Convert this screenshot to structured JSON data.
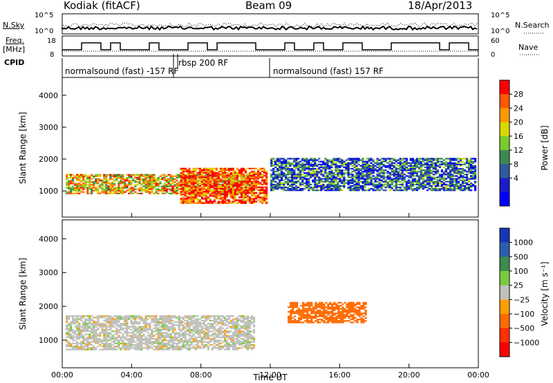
{
  "header": {
    "station": "Kodiak (fitACF)",
    "beam": "Beam 09",
    "date": "18/Apr/2013"
  },
  "summary_panel": {
    "left_top_label": "N.Sky",
    "left_mid_label": "Freq.",
    "left_mid_unit": "[MHz]",
    "left_bottom_label": "CPID",
    "right_top_label": "N.Search",
    "right_bottom_label": "Nave",
    "nsky_ticks": [
      "10^5",
      "10^0"
    ],
    "nsearch_ticks": [
      "10^5",
      "10^0"
    ],
    "freq_ticks": [
      "18",
      "8"
    ],
    "nave_ticks": [
      "60",
      "0"
    ]
  },
  "cpid_segments": [
    {
      "label": "normalsound (fast) -157 RF",
      "start_hour": 0.0
    },
    {
      "label": "rbsp 200 RF",
      "start_hour": 6.4
    },
    {
      "label": "normalsound (fast) 157 RF",
      "start_hour": 12.0
    }
  ],
  "power_colorbar": {
    "label": "Power [dB]",
    "ticks": [
      "28",
      "24",
      "20",
      "16",
      "12",
      "8",
      "4"
    ],
    "colors": [
      "#ff0000",
      "#ff5a00",
      "#ff9a00",
      "#d8d800",
      "#79cc2c",
      "#3b8a52",
      "#2f5b9c",
      "#1c1cc8",
      "#0000ff"
    ]
  },
  "velocity_colorbar": {
    "label": "Velocity [m s⁻¹]",
    "ticks": [
      "1000",
      "500",
      "100",
      "25",
      "−25",
      "−100",
      "−500",
      "−1000"
    ],
    "colors": [
      "#1836b4",
      "#2b5fae",
      "#3f8a4f",
      "#7acb3c",
      "#c0c0bc",
      "#ffa000",
      "#ff6c00",
      "#ff3000",
      "#ff0000"
    ]
  },
  "chart_data": [
    {
      "type": "heatmap",
      "title": "Kodiak (fitACF) Beam 09 18/Apr/2013",
      "xlabel": "Time UT",
      "ylabel": "Slant Range [km]",
      "x_ticks": [
        "00:00",
        "04:00",
        "08:00",
        "12:00",
        "16:00",
        "20:00",
        "00:00"
      ],
      "y_ticks": [
        "1000",
        "2000",
        "3000",
        "4000"
      ],
      "xlim_hours": [
        0,
        24
      ],
      "ylim_km": [
        180,
        4560
      ],
      "colorbar": "Power [dB]",
      "features": [
        {
          "name": "main band",
          "start_hour": 0.2,
          "end_hour": 11.0,
          "range_km": [
            900,
            1500
          ],
          "power_db": 20
        },
        {
          "name": "rising band",
          "start_hour": 6.8,
          "end_hour": 11.8,
          "range_km": [
            600,
            1700
          ],
          "power_db": 26
        },
        {
          "name": "afternoon band",
          "start_hour": 12.0,
          "end_hour": 23.8,
          "range_km": [
            1000,
            2000
          ],
          "power_db": 10
        }
      ]
    },
    {
      "type": "heatmap",
      "xlabel": "Time UT",
      "ylabel": "Slant Range [km]",
      "x_ticks": [
        "00:00",
        "04:00",
        "08:00",
        "12:00",
        "16:00",
        "20:00",
        "00:00"
      ],
      "y_ticks": [
        "1000",
        "2000",
        "3000",
        "4000"
      ],
      "xlim_hours": [
        0,
        24
      ],
      "ylim_km": [
        180,
        4560
      ],
      "colorbar": "Velocity [m s⁻¹]",
      "features": [
        {
          "name": "ground scatter band",
          "start_hour": 0.2,
          "end_hour": 11.0,
          "range_km": [
            700,
            1700
          ],
          "velocity": 0
        },
        {
          "name": "afternoon negative velocities",
          "start_hour": 13.0,
          "end_hour": 17.5,
          "range_km": [
            1500,
            2100
          ],
          "velocity": -150
        }
      ]
    }
  ]
}
